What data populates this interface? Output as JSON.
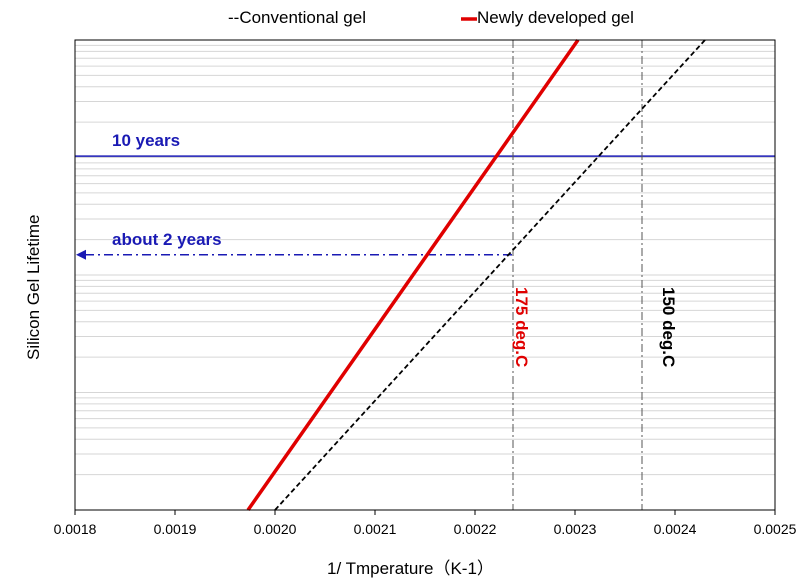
{
  "chart_data": {
    "type": "line",
    "title": "",
    "xlabel": "1/ Tmperature（K-1）",
    "ylabel": "Silicon Gel Lifetime",
    "xlim": [
      0.0018,
      0.0025
    ],
    "ylim": [
      0,
      1
    ],
    "x_ticks": [
      "0.0018",
      "0.0019",
      "0.0020",
      "0.0021",
      "0.0022",
      "0.0023",
      "0.0024",
      "0.0025"
    ],
    "y_scale": "log (no tick labels)",
    "grid": "horizontal minor gridlines",
    "legend": {
      "placement": "top-center",
      "entries": [
        {
          "label": "--Conventional gel",
          "color": "#000000",
          "style": "dashed"
        },
        {
          "label": "Newly developed gel",
          "color": "#e00000",
          "style": "solid"
        }
      ]
    },
    "series": [
      {
        "name": "Conventional gel",
        "color": "#000000",
        "style": "dashed",
        "x": [
          0.002,
          0.00243
        ],
        "y": [
          0.0,
          1.0
        ]
      },
      {
        "name": "Newly developed gel",
        "color": "#e00000",
        "style": "solid",
        "x": [
          0.001973,
          0.002303
        ],
        "y": [
          0.0,
          1.0
        ]
      }
    ],
    "reference_lines": [
      {
        "type": "horizontal",
        "label": "10 years",
        "y": 0.753,
        "color": "#1a1ab4"
      },
      {
        "type": "horizontal-arrow",
        "label": "about 2 years",
        "y": 0.543,
        "x_to": 0.002238,
        "color": "#1a1ab4"
      },
      {
        "type": "vertical",
        "label": "175 deg.C",
        "x": 0.002238,
        "color": "#e00000"
      },
      {
        "type": "vertical",
        "label": "150 deg.C",
        "x": 0.002367,
        "color": "#000000"
      }
    ]
  }
}
